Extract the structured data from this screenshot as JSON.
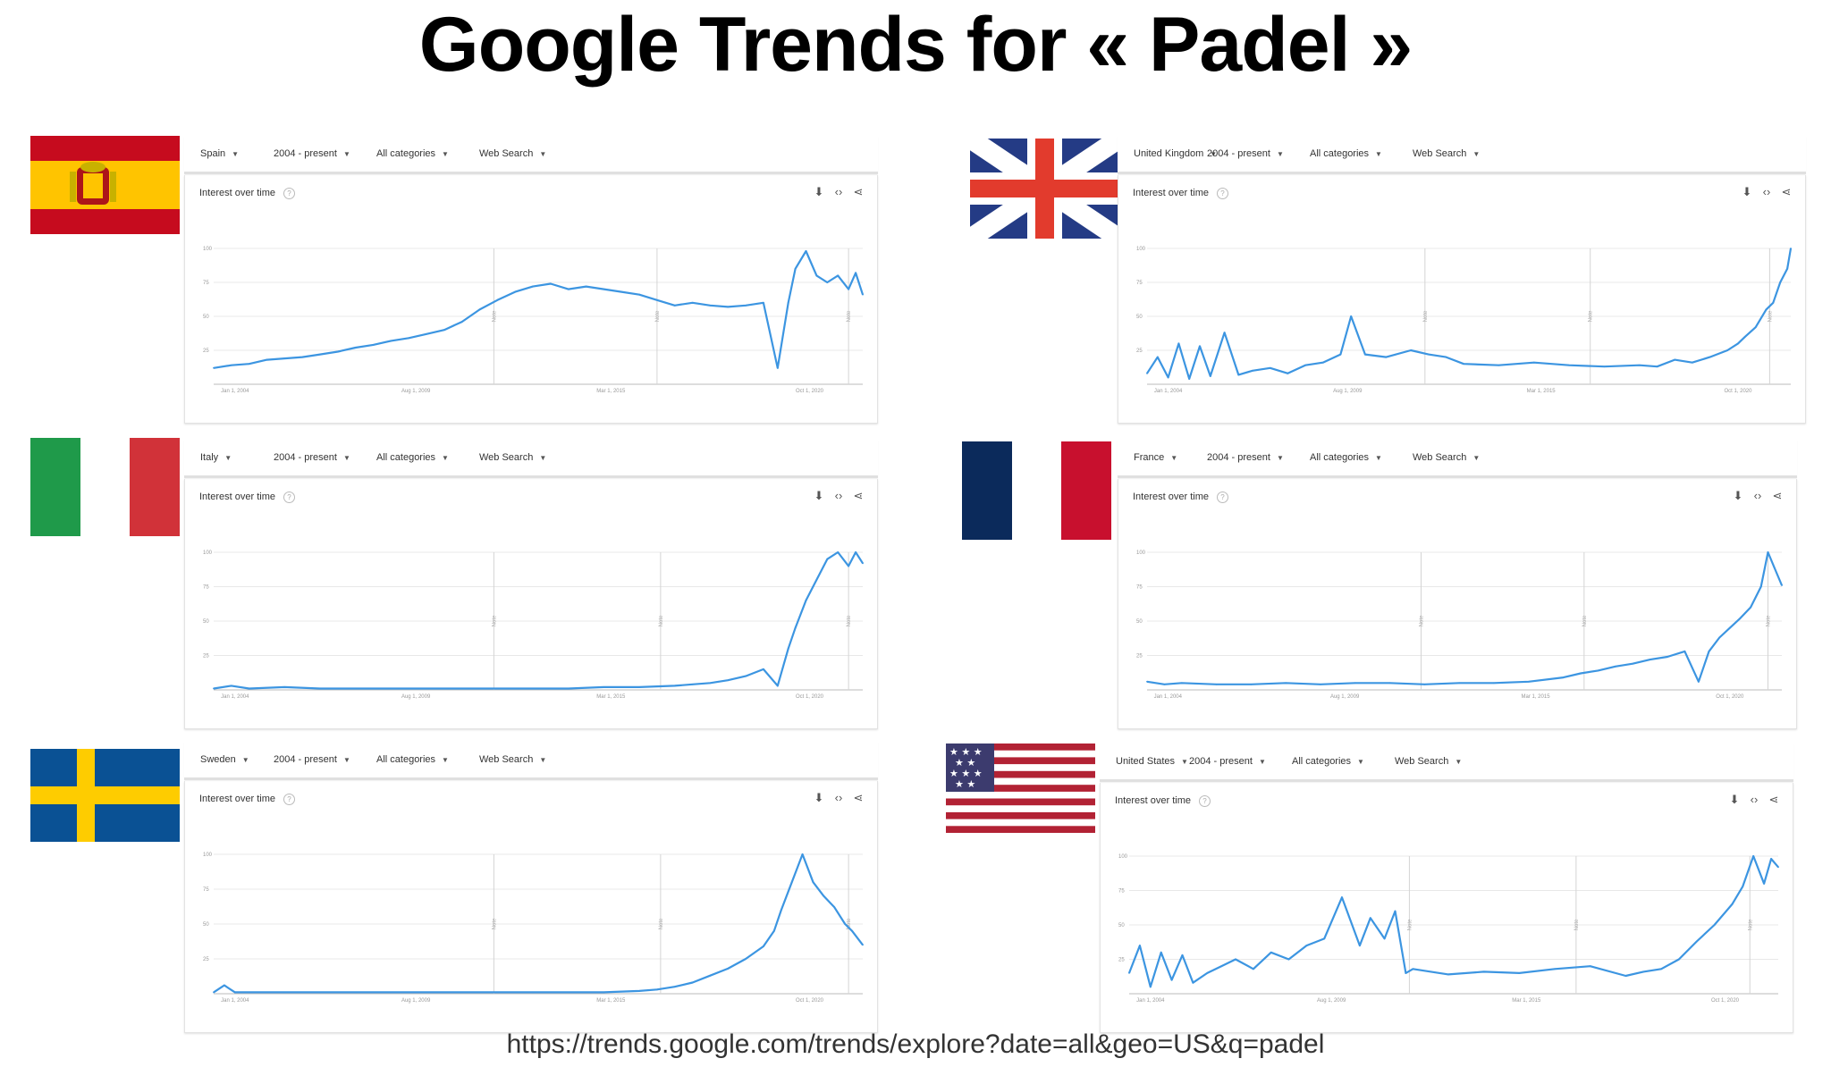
{
  "page_title": "Google Trends for « Padel »",
  "footer_url": "https://trends.google.com/trends/explore?date=all&geo=US&q=padel",
  "colors": {
    "line": "#3c95e1",
    "grid": "#e8e8e8",
    "note_line": "#d4d4d4"
  },
  "icons": {
    "download": "download-icon",
    "embed": "embed-icon",
    "share": "share-icon",
    "help": "help-icon"
  },
  "common": {
    "date_range": "2004 - present",
    "category": "All categories",
    "search_type": "Web Search",
    "card_title": "Interest over time",
    "help_glyph": "?",
    "note_label": "Note",
    "yticks": [
      "100",
      "75",
      "50",
      "25"
    ],
    "xticks": [
      "Jan 1, 2004",
      "Aug 1, 2009",
      "Mar 1, 2015",
      "Oct 1, 2020"
    ]
  },
  "panels": [
    {
      "country": "Spain",
      "flag": "spain-flag"
    },
    {
      "country": "United Kingdom",
      "flag": "uk-flag"
    },
    {
      "country": "Italy",
      "flag": "italy-flag"
    },
    {
      "country": "France",
      "flag": "france-flag"
    },
    {
      "country": "Sweden",
      "flag": "sweden-flag"
    },
    {
      "country": "United States",
      "flag": "us-flag"
    }
  ],
  "chart_data": [
    {
      "type": "line",
      "country": "Spain",
      "ylim": [
        0,
        100
      ],
      "x_start": 2004,
      "x_end": 2022.3,
      "notes_at": [
        2011.9,
        2016.5,
        2021.9
      ],
      "x": [
        2004,
        2004.5,
        2005,
        2005.5,
        2006,
        2006.5,
        2007,
        2007.5,
        2008,
        2008.5,
        2009,
        2009.5,
        2010,
        2010.5,
        2011,
        2011.5,
        2012,
        2012.5,
        2013,
        2013.5,
        2014,
        2014.5,
        2015,
        2015.5,
        2016,
        2016.5,
        2017,
        2017.5,
        2018,
        2018.5,
        2019,
        2019.5,
        2019.9,
        2020.2,
        2020.4,
        2020.7,
        2021,
        2021.3,
        2021.6,
        2021.9,
        2022.1,
        2022.3
      ],
      "values": [
        12,
        14,
        15,
        18,
        19,
        20,
        22,
        24,
        27,
        29,
        32,
        34,
        37,
        40,
        46,
        55,
        62,
        68,
        72,
        74,
        70,
        72,
        70,
        68,
        66,
        62,
        58,
        60,
        58,
        57,
        58,
        60,
        12,
        60,
        85,
        98,
        80,
        75,
        80,
        70,
        82,
        66
      ]
    },
    {
      "type": "line",
      "country": "United Kingdom",
      "ylim": [
        0,
        100
      ],
      "x_start": 2004,
      "x_end": 2022.3,
      "notes_at": [
        2011.9,
        2016.6,
        2021.7
      ],
      "x": [
        2004,
        2004.3,
        2004.6,
        2004.9,
        2005.2,
        2005.5,
        2005.8,
        2006.2,
        2006.6,
        2007,
        2007.5,
        2008,
        2008.5,
        2009,
        2009.5,
        2009.8,
        2010.2,
        2010.8,
        2011.5,
        2012,
        2012.5,
        2013,
        2014,
        2015,
        2016,
        2017,
        2018,
        2018.5,
        2019,
        2019.5,
        2020,
        2020.5,
        2020.8,
        2021,
        2021.3,
        2021.6,
        2021.8,
        2022,
        2022.2,
        2022.3
      ],
      "values": [
        8,
        20,
        5,
        30,
        4,
        28,
        6,
        38,
        7,
        10,
        12,
        8,
        14,
        16,
        22,
        50,
        22,
        20,
        25,
        22,
        20,
        15,
        14,
        16,
        14,
        13,
        14,
        13,
        18,
        16,
        20,
        25,
        30,
        35,
        42,
        55,
        60,
        75,
        85,
        100
      ]
    },
    {
      "type": "line",
      "country": "Italy",
      "ylim": [
        0,
        100
      ],
      "x_start": 2004,
      "x_end": 2022.3,
      "notes_at": [
        2011.9,
        2016.6,
        2021.9
      ],
      "x": [
        2004,
        2004.5,
        2005,
        2006,
        2007,
        2008,
        2009,
        2010,
        2011,
        2012,
        2013,
        2014,
        2015,
        2016,
        2017,
        2017.5,
        2018,
        2018.5,
        2019,
        2019.5,
        2019.9,
        2020.2,
        2020.4,
        2020.7,
        2021,
        2021.3,
        2021.6,
        2021.9,
        2022.1,
        2022.3
      ],
      "values": [
        1,
        3,
        1,
        2,
        1,
        1,
        1,
        1,
        1,
        1,
        1,
        1,
        2,
        2,
        3,
        4,
        5,
        7,
        10,
        15,
        3,
        30,
        45,
        65,
        80,
        95,
        100,
        90,
        100,
        92
      ]
    },
    {
      "type": "line",
      "country": "France",
      "ylim": [
        0,
        100
      ],
      "x_start": 2004,
      "x_end": 2022.3,
      "notes_at": [
        2011.9,
        2016.6,
        2021.9
      ],
      "x": [
        2004,
        2004.5,
        2005,
        2006,
        2007,
        2008,
        2009,
        2010,
        2011,
        2012,
        2013,
        2014,
        2015,
        2016,
        2016.5,
        2017,
        2017.5,
        2018,
        2018.5,
        2019,
        2019.5,
        2019.9,
        2020.2,
        2020.5,
        2020.8,
        2021.1,
        2021.4,
        2021.7,
        2021.9,
        2022.1,
        2022.3
      ],
      "values": [
        6,
        4,
        5,
        4,
        4,
        5,
        4,
        5,
        5,
        4,
        5,
        5,
        6,
        9,
        12,
        14,
        17,
        19,
        22,
        24,
        28,
        6,
        28,
        38,
        45,
        52,
        60,
        75,
        100,
        88,
        76
      ]
    },
    {
      "type": "line",
      "country": "Sweden",
      "ylim": [
        0,
        100
      ],
      "x_start": 2004,
      "x_end": 2022.3,
      "notes_at": [
        2011.9,
        2016.6,
        2021.9
      ],
      "x": [
        2004,
        2004.3,
        2004.6,
        2005,
        2006,
        2007,
        2008,
        2009,
        2010,
        2011,
        2012,
        2013,
        2014,
        2015,
        2016,
        2016.5,
        2017,
        2017.5,
        2018,
        2018.5,
        2019,
        2019.5,
        2019.8,
        2020,
        2020.3,
        2020.6,
        2020.9,
        2021.2,
        2021.5,
        2021.8,
        2022,
        2022.3
      ],
      "values": [
        1,
        6,
        1,
        1,
        1,
        1,
        1,
        1,
        1,
        1,
        1,
        1,
        1,
        1,
        2,
        3,
        5,
        8,
        13,
        18,
        25,
        34,
        45,
        60,
        80,
        100,
        80,
        70,
        62,
        50,
        45,
        35
      ]
    },
    {
      "type": "line",
      "country": "United States",
      "ylim": [
        0,
        100
      ],
      "x_start": 2004,
      "x_end": 2022.3,
      "notes_at": [
        2011.9,
        2016.6,
        2021.5
      ],
      "x": [
        2004,
        2004.3,
        2004.6,
        2004.9,
        2005.2,
        2005.5,
        2005.8,
        2006.2,
        2006.6,
        2007,
        2007.5,
        2008,
        2008.5,
        2009,
        2009.5,
        2010,
        2010.5,
        2010.8,
        2011.2,
        2011.5,
        2011.8,
        2012,
        2013,
        2014,
        2015,
        2016,
        2017,
        2018,
        2018.5,
        2019,
        2019.5,
        2020,
        2020.5,
        2021,
        2021.3,
        2021.6,
        2021.9,
        2022.1,
        2022.3
      ],
      "values": [
        15,
        35,
        5,
        30,
        10,
        28,
        8,
        15,
        20,
        25,
        18,
        30,
        25,
        35,
        40,
        70,
        35,
        55,
        40,
        60,
        15,
        18,
        14,
        16,
        15,
        18,
        20,
        13,
        16,
        18,
        25,
        38,
        50,
        65,
        78,
        100,
        80,
        98,
        92
      ]
    }
  ]
}
